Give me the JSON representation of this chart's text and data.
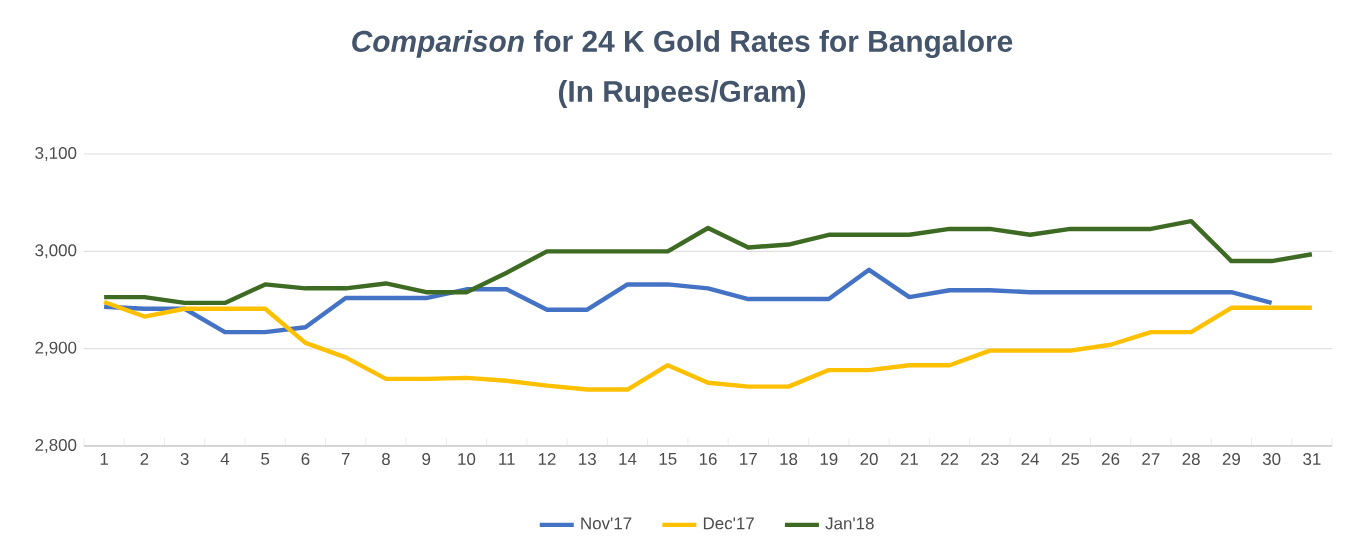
{
  "chart_data": {
    "type": "line",
    "title": "*Comparison* for 24 K Gold Rates for Bangalore",
    "subtitle": "(In Rupees/Gram)",
    "categories": [
      "1",
      "2",
      "3",
      "4",
      "5",
      "6",
      "7",
      "8",
      "9",
      "10",
      "11",
      "12",
      "13",
      "14",
      "15",
      "16",
      "17",
      "18",
      "19",
      "20",
      "21",
      "22",
      "23",
      "24",
      "25",
      "26",
      "27",
      "28",
      "29",
      "30",
      "31"
    ],
    "series": [
      {
        "name": "Nov'17",
        "color": "#4472c4",
        "values": [
          2943,
          2941,
          2941,
          2917,
          2917,
          2922,
          2952,
          2952,
          2952,
          2961,
          2961,
          2940,
          2940,
          2966,
          2966,
          2962,
          2951,
          2951,
          2951,
          2981,
          2953,
          2960,
          2960,
          2958,
          2958,
          2958,
          2958,
          2958,
          2958,
          2947,
          null
        ]
      },
      {
        "name": "Dec'17",
        "color": "#ffc000",
        "values": [
          2948,
          2933,
          2941,
          2941,
          2941,
          2906,
          2891,
          2869,
          2869,
          2870,
          2867,
          2862,
          2858,
          2858,
          2883,
          2865,
          2861,
          2861,
          2878,
          2878,
          2883,
          2883,
          2898,
          2898,
          2898,
          2904,
          2917,
          2917,
          2942,
          2942,
          2942
        ]
      },
      {
        "name": "Jan'18",
        "color": "#3e6b23",
        "values": [
          2953,
          2953,
          2947,
          2947,
          2966,
          2962,
          2962,
          2967,
          2958,
          2958,
          2978,
          3000,
          3000,
          3000,
          3000,
          3024,
          3004,
          3007,
          3017,
          3017,
          3017,
          3023,
          3023,
          3017,
          3023,
          3023,
          3023,
          3031,
          2990,
          2990,
          2997
        ]
      }
    ],
    "ylim": [
      2800,
      3100
    ],
    "yticks": [
      {
        "value": 2800,
        "label": "2,800"
      },
      {
        "value": 2900,
        "label": "2,900"
      },
      {
        "value": 3000,
        "label": "3,000"
      },
      {
        "value": 3100,
        "label": "3,100"
      }
    ],
    "grid": "y",
    "legend": "bottom"
  }
}
